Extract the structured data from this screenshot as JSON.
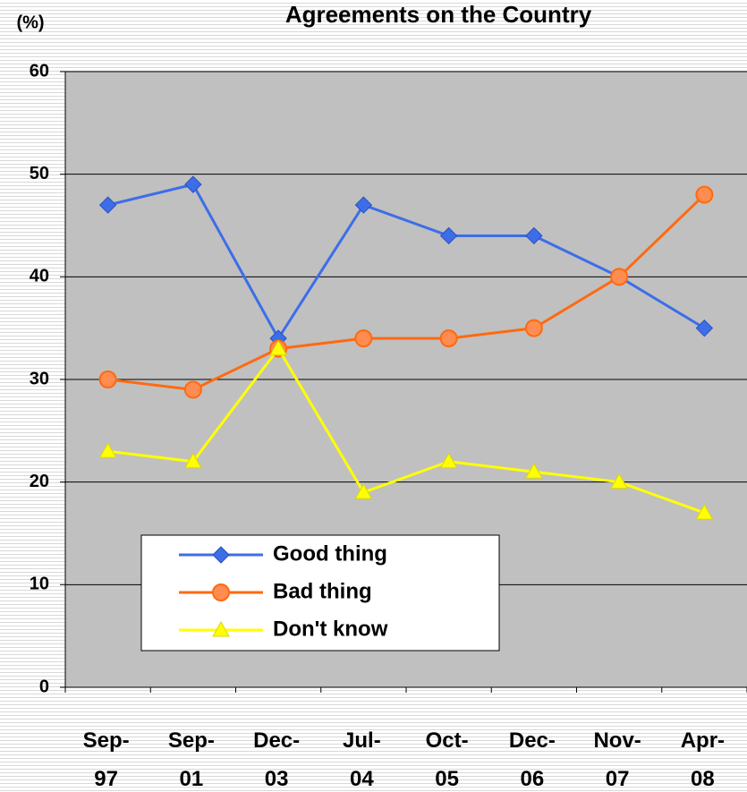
{
  "chart_data": {
    "type": "line",
    "title": "Agreements on the Country",
    "y_label": "(%)",
    "categories": [
      "Sep-97",
      "Sep-01",
      "Dec-03",
      "Jul-04",
      "Oct-05",
      "Dec-06",
      "Nov-07",
      "Apr-08"
    ],
    "series": [
      {
        "name": "Good thing",
        "color": "#3d6ee8",
        "marker": "diamond",
        "values": [
          47,
          49,
          34,
          47,
          44,
          44,
          40,
          35
        ]
      },
      {
        "name": "Bad thing",
        "color": "#ff6a10",
        "marker": "circle",
        "values": [
          30,
          29,
          33,
          34,
          34,
          35,
          40,
          48
        ]
      },
      {
        "name": "Don't know",
        "color": "#ffff00",
        "marker": "triangle",
        "values": [
          23,
          22,
          33,
          19,
          22,
          21,
          20,
          17
        ]
      }
    ],
    "ylim": [
      0,
      60
    ],
    "yticks": [
      0,
      10,
      20,
      30,
      40,
      50,
      60
    ],
    "grid": true,
    "legend": "lower left"
  }
}
